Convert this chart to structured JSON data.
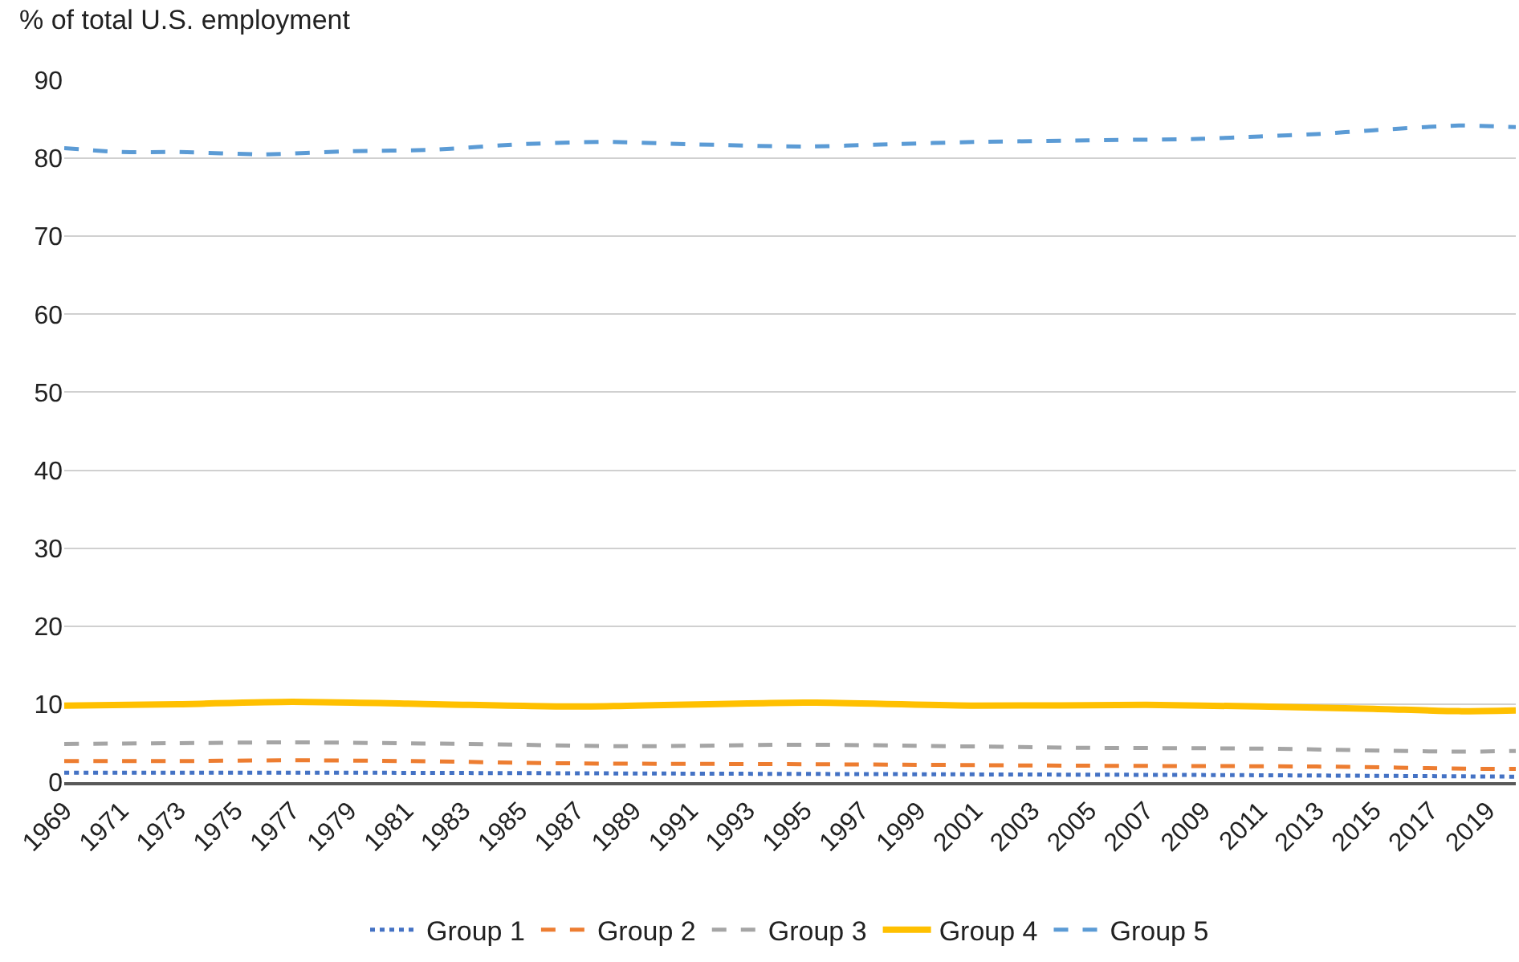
{
  "chart_data": {
    "type": "line",
    "ylabel": "% of total U.S. employment",
    "xlim": [
      1969,
      2020
    ],
    "xticks": [
      1969,
      1971,
      1973,
      1975,
      1977,
      1979,
      1981,
      1983,
      1985,
      1987,
      1989,
      1991,
      1993,
      1995,
      1997,
      1999,
      2001,
      2003,
      2005,
      2007,
      2009,
      2011,
      2013,
      2015,
      2017,
      2019
    ],
    "ylim": [
      0,
      90
    ],
    "yticks": [
      0,
      10,
      20,
      30,
      40,
      50,
      60,
      70,
      80,
      90
    ],
    "grid": "y",
    "legend": "bottom",
    "marker": "none",
    "series": [
      {
        "name": "Group 1",
        "color": "#4472c4",
        "line_style": "dotted",
        "x": [
          1969,
          1980,
          1990,
          2000,
          2010,
          2020
        ],
        "values": [
          1.2,
          1.2,
          1.1,
          1.0,
          0.9,
          0.7
        ]
      },
      {
        "name": "Group 2",
        "color": "#ed7d31",
        "line_style": "dashed",
        "x": [
          1969,
          1973,
          1977,
          1981,
          1987,
          1995,
          2005,
          2013,
          2019,
          2020
        ],
        "values": [
          2.7,
          2.7,
          2.8,
          2.7,
          2.4,
          2.3,
          2.1,
          2.0,
          1.7,
          1.7
        ]
      },
      {
        "name": "Group 3",
        "color": "#a5a5a5",
        "line_style": "dashed",
        "x": [
          1969,
          1973,
          1977,
          1983,
          1989,
          1995,
          2005,
          2011,
          2018,
          2020
        ],
        "values": [
          4.9,
          5.0,
          5.1,
          4.9,
          4.6,
          4.8,
          4.4,
          4.3,
          3.9,
          4.0
        ]
      },
      {
        "name": "Group 4",
        "color": "#ffc000",
        "line_style": "solid",
        "x": [
          1969,
          1973,
          1977,
          1982,
          1987,
          1995,
          2001,
          2007,
          2011,
          2015,
          2018,
          2020
        ],
        "values": [
          9.8,
          10.0,
          10.3,
          10.0,
          9.7,
          10.2,
          9.8,
          9.9,
          9.7,
          9.4,
          9.1,
          9.2
        ]
      },
      {
        "name": "Group 5",
        "color": "#5b9bd5",
        "line_style": "dashed",
        "x": [
          1969,
          1971,
          1973,
          1976,
          1979,
          1982,
          1985,
          1988,
          1991,
          1995,
          1998,
          2001,
          2005,
          2009,
          2011,
          2013,
          2015,
          2018,
          2020
        ],
        "values": [
          81.3,
          80.8,
          80.8,
          80.5,
          80.9,
          81.1,
          81.8,
          82.1,
          81.8,
          81.5,
          81.8,
          82.1,
          82.3,
          82.5,
          82.8,
          83.1,
          83.6,
          84.2,
          84.0
        ]
      }
    ]
  }
}
